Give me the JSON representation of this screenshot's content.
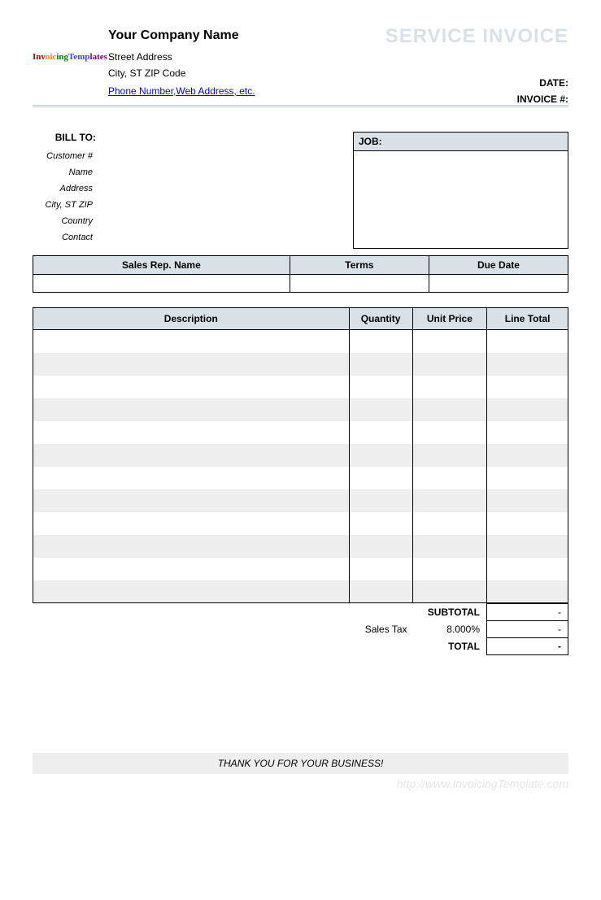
{
  "header": {
    "logo_text": "InvoicingTemplates",
    "company_name": "Your Company Name",
    "street": "Street Address",
    "city_line": "City, ST  ZIP Code",
    "phone_link": "Phone Number,Web Address, etc.",
    "title": "SERVICE INVOICE",
    "date_label": "DATE:",
    "invoice_no_label": "INVOICE #:"
  },
  "bill_to": {
    "heading": "BILL TO:",
    "rows": {
      "customer_no": "Customer #",
      "name": "Name",
      "address": "Address",
      "city": "City, ST ZIP",
      "country": "Country",
      "contact": "Contact"
    }
  },
  "job": {
    "heading": "JOB:"
  },
  "meta": {
    "cols": {
      "rep": "Sales Rep. Name",
      "terms": "Terms",
      "due": "Due Date"
    }
  },
  "items": {
    "cols": {
      "desc": "Description",
      "qty": "Quantity",
      "price": "Unit Price",
      "total": "Line Total"
    },
    "row_count": 12
  },
  "totals": {
    "subtotal_label": "SUBTOTAL",
    "subtotal_value": "-",
    "tax_label": "Sales Tax",
    "tax_rate": "8.000%",
    "tax_value": "-",
    "total_label": "TOTAL",
    "total_value": "-"
  },
  "footer": {
    "thanks": "THANK YOU FOR YOUR BUSINESS!",
    "watermark": "http://www.InvoicingTemplate.com"
  },
  "colors": {
    "header_fill": "#d9e1e8",
    "stripe": "#eeeeee",
    "title_gray": "#d9e1e8"
  }
}
